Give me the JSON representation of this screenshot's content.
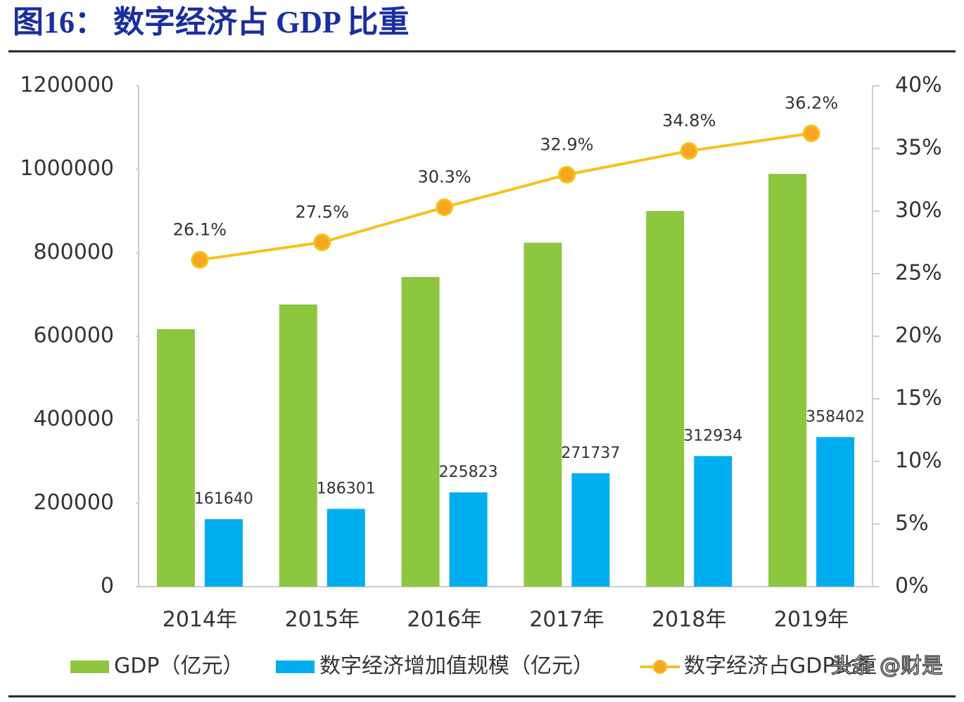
{
  "chart_data": {
    "type": "bar-line",
    "title": "图16： 数字经济占 GDP 比重",
    "categories": [
      "2014年",
      "2015年",
      "2016年",
      "2017年",
      "2018年",
      "2019年"
    ],
    "series": [
      {
        "name": "GDP（亿元）",
        "type": "bar",
        "color": "#8dc63f",
        "values": [
          617000,
          676000,
          742000,
          824000,
          900000,
          989000
        ]
      },
      {
        "name": "数字经济增加值规模（亿元）",
        "type": "bar",
        "color": "#00aeef",
        "values": [
          161640,
          186301,
          225823,
          271737,
          312934,
          358402
        ]
      },
      {
        "name": "数字经济占GDP比重",
        "type": "line",
        "axis": "y2",
        "color": "#f5c21b",
        "marker_color": "#f6a623",
        "values": [
          26.1,
          27.5,
          30.3,
          32.9,
          34.8,
          36.2
        ],
        "value_labels": [
          "26.1%",
          "27.5%",
          "30.3%",
          "32.9%",
          "34.8%",
          "36.2%"
        ]
      }
    ],
    "ylim": [
      0,
      1200000
    ],
    "yticks": [
      0,
      200000,
      400000,
      600000,
      800000,
      1000000,
      1200000
    ],
    "y2lim": [
      0,
      40
    ],
    "y2ticks": [
      {
        "value": 0,
        "label": "0%"
      },
      {
        "value": 5,
        "label": "5%"
      },
      {
        "value": 10,
        "label": "10%"
      },
      {
        "value": 15,
        "label": "15%"
      },
      {
        "value": 20,
        "label": "20%"
      },
      {
        "value": 25,
        "label": "25%"
      },
      {
        "value": 30,
        "label": "30%"
      },
      {
        "value": 35,
        "label": "35%"
      },
      {
        "value": 40,
        "label": "40%"
      }
    ],
    "grid": false,
    "legend": "bottom",
    "watermark": "头条 @财是"
  }
}
